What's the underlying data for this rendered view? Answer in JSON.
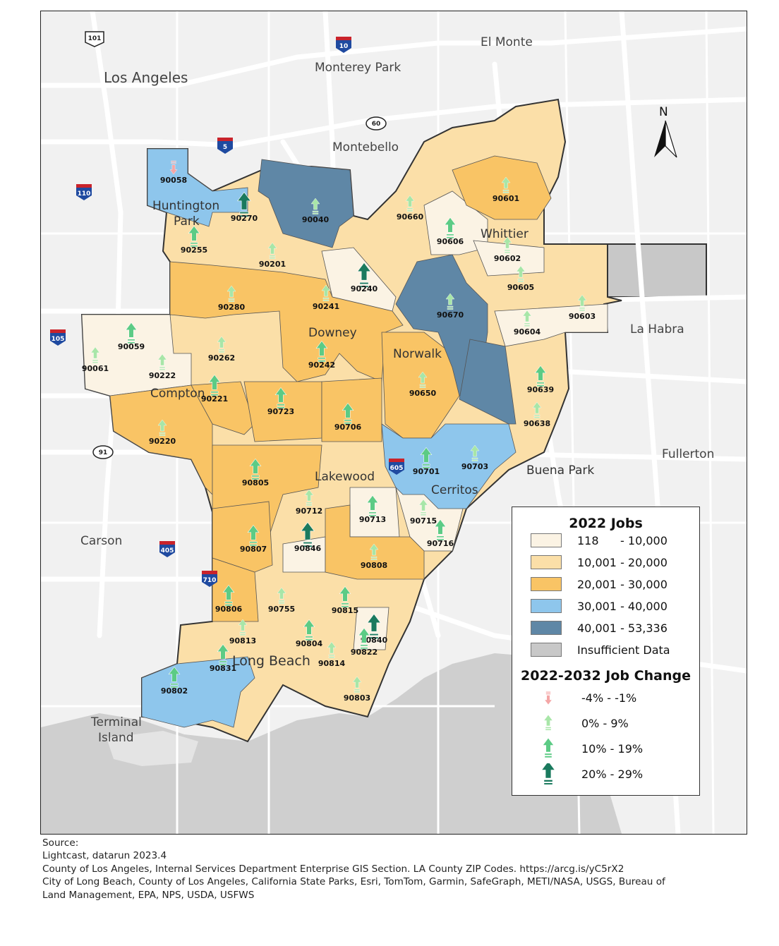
{
  "map": {
    "cities": {
      "el_monte": "El Monte",
      "los_angeles": "Los Angeles",
      "monterey_park": "Monterey Park",
      "montebello": "Montebello",
      "huntington_park": "Huntington\nPark",
      "whittier": "Whittier",
      "downey": "Downey",
      "norwalk": "Norwalk",
      "la_habra": "La Habra",
      "compton": "Compton",
      "fullerton": "Fullerton",
      "buena_park": "Buena Park",
      "lakewood": "Lakewood",
      "cerritos": "Cerritos",
      "carson": "Carson",
      "long_beach": "Long Beach",
      "terminal_island": "Terminal\nIsland"
    },
    "north_label": "N",
    "highways": [
      "101",
      "10",
      "60",
      "5",
      "110",
      "105",
      "91",
      "605",
      "405",
      "710"
    ],
    "zips": [
      {
        "zip": "90058",
        "jobs_class": "30,001 - 40,000",
        "change_class": "-4% - -1%"
      },
      {
        "zip": "90270",
        "jobs_class": "30,001 - 40,000",
        "change_class": "20% - 29%"
      },
      {
        "zip": "90040",
        "jobs_class": "40,001 - 53,336",
        "change_class": "0% - 9%"
      },
      {
        "zip": "90255",
        "jobs_class": "10,001 - 20,000",
        "change_class": "10% - 19%"
      },
      {
        "zip": "90201",
        "jobs_class": "10,001 - 20,000",
        "change_class": "0% - 9%"
      },
      {
        "zip": "90660",
        "jobs_class": "10,001 - 20,000",
        "change_class": "0% - 9%"
      },
      {
        "zip": "90601",
        "jobs_class": "20,001 - 30,000",
        "change_class": "0% - 9%"
      },
      {
        "zip": "90606",
        "jobs_class": "118 - 10,000",
        "change_class": "10% - 19%"
      },
      {
        "zip": "90602",
        "jobs_class": "118 - 10,000",
        "change_class": "0% - 9%"
      },
      {
        "zip": "90605",
        "jobs_class": "10,001 - 20,000",
        "change_class": "0% - 9%"
      },
      {
        "zip": "90240",
        "jobs_class": "118 - 10,000",
        "change_class": "20% - 29%"
      },
      {
        "zip": "90280",
        "jobs_class": "20,001 - 30,000",
        "change_class": "0% - 9%"
      },
      {
        "zip": "90241",
        "jobs_class": "20,001 - 30,000",
        "change_class": "0% - 9%"
      },
      {
        "zip": "90670",
        "jobs_class": "40,001 - 53,336",
        "change_class": "0% - 9%"
      },
      {
        "zip": "90603",
        "jobs_class": "118 - 10,000",
        "change_class": "0% - 9%"
      },
      {
        "zip": "90604",
        "jobs_class": "118 - 10,000",
        "change_class": "0% - 9%"
      },
      {
        "zip": "90059",
        "jobs_class": "118 - 10,000",
        "change_class": "10% - 19%"
      },
      {
        "zip": "90061",
        "jobs_class": "118 - 10,000",
        "change_class": "0% - 9%"
      },
      {
        "zip": "90222",
        "jobs_class": "118 - 10,000",
        "change_class": "0% - 9%"
      },
      {
        "zip": "90262",
        "jobs_class": "10,001 - 20,000",
        "change_class": "0% - 9%"
      },
      {
        "zip": "90242",
        "jobs_class": "10,001 - 20,000",
        "change_class": "10% - 19%"
      },
      {
        "zip": "90650",
        "jobs_class": "20,001 - 30,000",
        "change_class": "0% - 9%"
      },
      {
        "zip": "90639",
        "jobs_class": "10,001 - 20,000",
        "change_class": "10% - 19%"
      },
      {
        "zip": "90638",
        "jobs_class": "10,001 - 20,000",
        "change_class": "0% - 9%"
      },
      {
        "zip": "90221",
        "jobs_class": "20,001 - 30,000",
        "change_class": "10% - 19%"
      },
      {
        "zip": "90723",
        "jobs_class": "20,001 - 30,000",
        "change_class": "10% - 19%"
      },
      {
        "zip": "90706",
        "jobs_class": "20,001 - 30,000",
        "change_class": "10% - 19%"
      },
      {
        "zip": "90220",
        "jobs_class": "20,001 - 30,000",
        "change_class": "0% - 9%"
      },
      {
        "zip": "90701",
        "jobs_class": "118 - 10,000",
        "change_class": "10% - 19%"
      },
      {
        "zip": "90703",
        "jobs_class": "30,001 - 40,000",
        "change_class": "0% - 9%"
      },
      {
        "zip": "90805",
        "jobs_class": "20,001 - 30,000",
        "change_class": "10% - 19%"
      },
      {
        "zip": "90712",
        "jobs_class": "10,001 - 20,000",
        "change_class": "0% - 9%"
      },
      {
        "zip": "90713",
        "jobs_class": "118 - 10,000",
        "change_class": "10% - 19%"
      },
      {
        "zip": "90715",
        "jobs_class": "118 - 10,000",
        "change_class": "0% - 9%"
      },
      {
        "zip": "90716",
        "jobs_class": "118 - 10,000",
        "change_class": "10% - 19%"
      },
      {
        "zip": "90807",
        "jobs_class": "20,001 - 30,000",
        "change_class": "10% - 19%"
      },
      {
        "zip": "90846",
        "jobs_class": "118 - 10,000",
        "change_class": "20% - 29%"
      },
      {
        "zip": "90808",
        "jobs_class": "20,001 - 30,000",
        "change_class": "0% - 9%"
      },
      {
        "zip": "90806",
        "jobs_class": "20,001 - 30,000",
        "change_class": "10% - 19%"
      },
      {
        "zip": "90755",
        "jobs_class": "10,001 - 20,000",
        "change_class": "0% - 9%"
      },
      {
        "zip": "90815",
        "jobs_class": "10,001 - 20,000",
        "change_class": "10% - 19%"
      },
      {
        "zip": "90840",
        "jobs_class": "118 - 10,000",
        "change_class": "20% - 29%"
      },
      {
        "zip": "90813",
        "jobs_class": "10,001 - 20,000",
        "change_class": "0% - 9%"
      },
      {
        "zip": "90804",
        "jobs_class": "10,001 - 20,000",
        "change_class": "10% - 19%"
      },
      {
        "zip": "90822",
        "jobs_class": "118 - 10,000",
        "change_class": "10% - 19%"
      },
      {
        "zip": "90831",
        "jobs_class": "30,001 - 40,000",
        "change_class": "10% - 19%"
      },
      {
        "zip": "90814",
        "jobs_class": "10,001 - 20,000",
        "change_class": "0% - 9%"
      },
      {
        "zip": "90802",
        "jobs_class": "30,001 - 40,000",
        "change_class": "10% - 19%"
      },
      {
        "zip": "90803",
        "jobs_class": "10,001 - 20,000",
        "change_class": "0% - 9%"
      }
    ]
  },
  "legend": {
    "jobs_title": "2022 Jobs",
    "jobs_classes": [
      {
        "label": "118      - 10,000",
        "color": "#fbf3e4"
      },
      {
        "label": "10,001 - 20,000",
        "color": "#fbdfa8"
      },
      {
        "label": "20,001 - 30,000",
        "color": "#f9c465"
      },
      {
        "label": "30,001 - 40,000",
        "color": "#8ec6ec"
      },
      {
        "label": "40,001 - 53,336",
        "color": "#5f87a6"
      },
      {
        "label": "Insufficient Data",
        "color": "#c8c8c8"
      }
    ],
    "change_title": "2022-2032 Job Change",
    "change_classes": [
      {
        "label": "-4% - -1%",
        "color": "#f4a6a6"
      },
      {
        "label": "0% - 9%",
        "color": "#a8e6a8"
      },
      {
        "label": "10% - 19%",
        "color": "#5ccb85"
      },
      {
        "label": "20% - 29%",
        "color": "#1a7a5e"
      }
    ]
  },
  "source": {
    "heading": "Source:",
    "lines": [
      "Lightcast, datarun 2023.4",
      "County of Los Angeles, Internal Services Department Enterprise GIS Section. LA County ZIP Codes. https://arcg.is/yC5rX2",
      "City of Long Beach, County of Los Angeles, California State Parks, Esri, TomTom, Garmin, SafeGraph, METI/NASA, USGS, Bureau of",
      "Land Management, EPA, NPS, USDA, USFWS"
    ]
  }
}
